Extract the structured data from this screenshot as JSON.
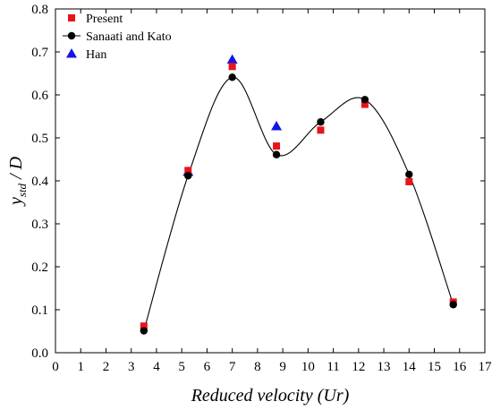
{
  "chart_data": {
    "type": "scatter",
    "xlabel": "Reduced velocity (Ur)",
    "ylabel": {
      "main": "y",
      "subscript": "std",
      "rest": " / D"
    },
    "xlim": [
      0,
      17
    ],
    "ylim": [
      0,
      0.8
    ],
    "xticks": [
      0,
      1,
      2,
      3,
      4,
      5,
      6,
      7,
      8,
      9,
      10,
      11,
      12,
      13,
      14,
      15,
      16,
      17
    ],
    "yticks": [
      0.0,
      0.1,
      0.2,
      0.3,
      0.4,
      0.5,
      0.6,
      0.7,
      0.8
    ],
    "ytick_labels": [
      "0.0",
      "0.1",
      "0.2",
      "0.3",
      "0.4",
      "0.5",
      "0.6",
      "0.7",
      "0.8"
    ],
    "grid": false,
    "legend_position": "top-left",
    "series": [
      {
        "name": "Present",
        "marker": "square",
        "color": "#e8141c",
        "x": [
          3.5,
          5.25,
          7.0,
          8.75,
          10.5,
          12.25,
          14.0,
          15.75
        ],
        "y": [
          0.062,
          0.424,
          0.666,
          0.481,
          0.518,
          0.578,
          0.398,
          0.118
        ]
      },
      {
        "name": "Sanaati and Kato",
        "marker": "circle",
        "color": "#000000",
        "line": "smooth",
        "x": [
          3.5,
          5.25,
          7.0,
          8.75,
          10.5,
          12.25,
          14.0,
          15.75
        ],
        "y": [
          0.051,
          0.412,
          0.641,
          0.461,
          0.537,
          0.589,
          0.415,
          0.112
        ]
      },
      {
        "name": "Han",
        "marker": "triangle",
        "color": "#1414e8",
        "x": [
          5.25,
          7.0,
          8.75
        ],
        "y": [
          0.421,
          0.682,
          0.527
        ]
      }
    ]
  }
}
